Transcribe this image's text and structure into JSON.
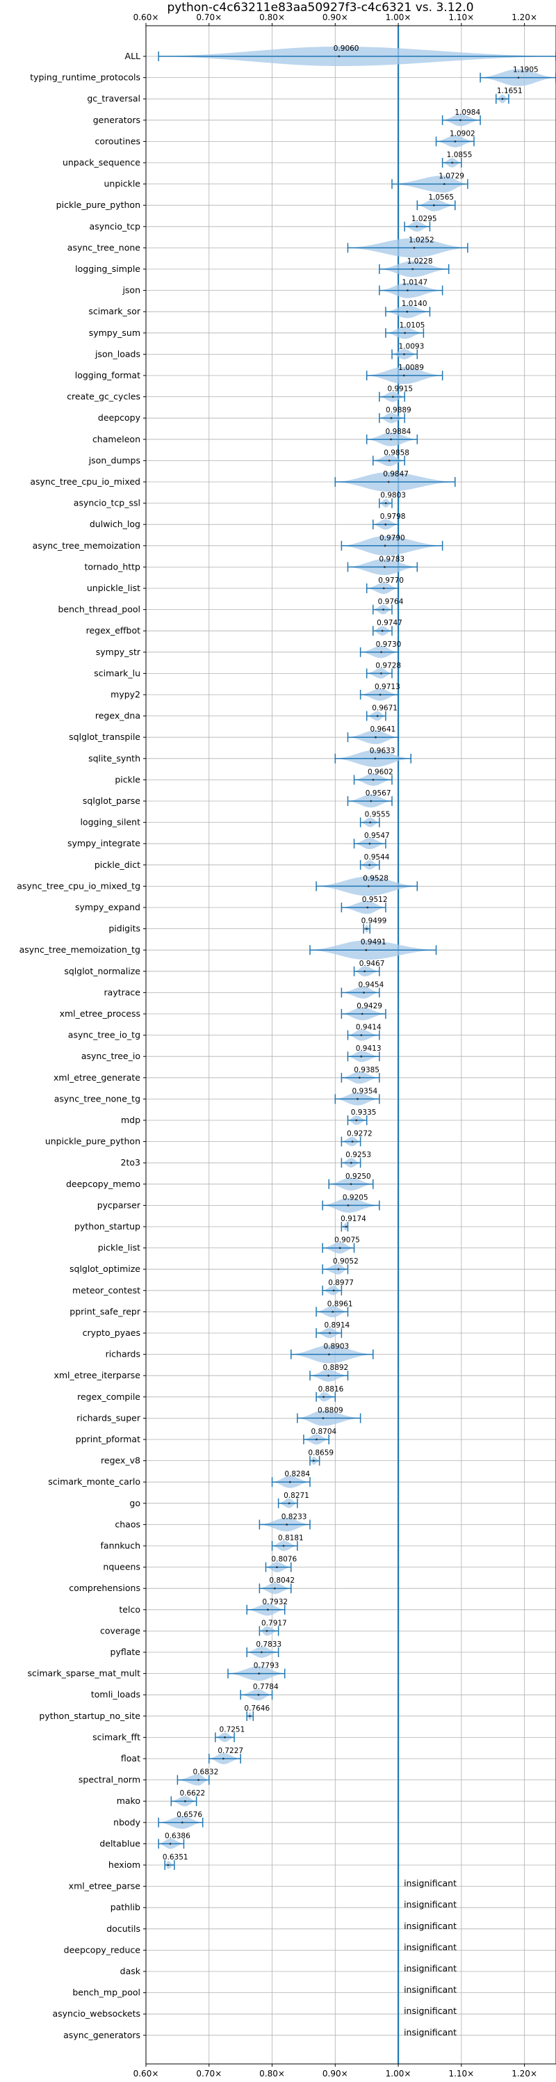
{
  "chart_data": {
    "type": "violin",
    "title": "python-c4c63211e83aa50927f3-c4c6321 vs. 3.12.0",
    "xlabel": "",
    "ylabel": "",
    "xlim": [
      0.6,
      1.25
    ],
    "x_ticks": [
      0.6,
      0.7,
      0.8,
      0.9,
      1.0,
      1.1,
      1.2
    ],
    "x_tick_labels": [
      "0.60×",
      "0.70×",
      "0.80×",
      "0.90×",
      "1.00×",
      "1.10×",
      "1.20×"
    ],
    "reference_line": 1.0,
    "grid": true,
    "colors": {
      "violin": "#a6c8e8",
      "line": "#1f77b4",
      "grid": "#b0b0b0",
      "text": "#000000"
    },
    "benchmarks": [
      {
        "name": "ALL",
        "value": 0.906,
        "label": "0.9060",
        "min": 0.62,
        "max": 1.25
      },
      {
        "name": "typing_runtime_protocols",
        "value": 1.1905,
        "label": "1.1905",
        "min": 1.13,
        "max": 1.25
      },
      {
        "name": "gc_traversal",
        "value": 1.1651,
        "label": "1.1651",
        "min": 1.155,
        "max": 1.175
      },
      {
        "name": "generators",
        "value": 1.0984,
        "label": "1.0984",
        "min": 1.07,
        "max": 1.13
      },
      {
        "name": "coroutines",
        "value": 1.0902,
        "label": "1.0902",
        "min": 1.06,
        "max": 1.12
      },
      {
        "name": "unpack_sequence",
        "value": 1.0855,
        "label": "1.0855",
        "min": 1.07,
        "max": 1.1
      },
      {
        "name": "unpickle",
        "value": 1.0729,
        "label": "1.0729",
        "min": 0.99,
        "max": 1.11
      },
      {
        "name": "pickle_pure_python",
        "value": 1.0565,
        "label": "1.0565",
        "min": 1.03,
        "max": 1.09
      },
      {
        "name": "asyncio_tcp",
        "value": 1.0295,
        "label": "1.0295",
        "min": 1.01,
        "max": 1.05
      },
      {
        "name": "async_tree_none",
        "value": 1.0252,
        "label": "1.0252",
        "min": 0.92,
        "max": 1.11
      },
      {
        "name": "logging_simple",
        "value": 1.0228,
        "label": "1.0228",
        "min": 0.97,
        "max": 1.08
      },
      {
        "name": "json",
        "value": 1.0147,
        "label": "1.0147",
        "min": 0.97,
        "max": 1.07
      },
      {
        "name": "scimark_sor",
        "value": 1.014,
        "label": "1.0140",
        "min": 0.98,
        "max": 1.05
      },
      {
        "name": "sympy_sum",
        "value": 1.0105,
        "label": "1.0105",
        "min": 0.98,
        "max": 1.04
      },
      {
        "name": "json_loads",
        "value": 1.0093,
        "label": "1.0093",
        "min": 0.99,
        "max": 1.03
      },
      {
        "name": "logging_format",
        "value": 1.0089,
        "label": "1.0089",
        "min": 0.95,
        "max": 1.07
      },
      {
        "name": "create_gc_cycles",
        "value": 0.9915,
        "label": "0.9915",
        "min": 0.97,
        "max": 1.01
      },
      {
        "name": "deepcopy",
        "value": 0.9889,
        "label": "0.9889",
        "min": 0.97,
        "max": 1.01
      },
      {
        "name": "chameleon",
        "value": 0.9884,
        "label": "0.9884",
        "min": 0.95,
        "max": 1.03
      },
      {
        "name": "json_dumps",
        "value": 0.9858,
        "label": "0.9858",
        "min": 0.96,
        "max": 1.01
      },
      {
        "name": "async_tree_cpu_io_mixed",
        "value": 0.9847,
        "label": "0.9847",
        "min": 0.9,
        "max": 1.09
      },
      {
        "name": "asyncio_tcp_ssl",
        "value": 0.9803,
        "label": "0.9803",
        "min": 0.97,
        "max": 0.99
      },
      {
        "name": "dulwich_log",
        "value": 0.9798,
        "label": "0.9798",
        "min": 0.96,
        "max": 1.0
      },
      {
        "name": "async_tree_memoization",
        "value": 0.979,
        "label": "0.9790",
        "min": 0.91,
        "max": 1.07
      },
      {
        "name": "tornado_http",
        "value": 0.9783,
        "label": "0.9783",
        "min": 0.92,
        "max": 1.03
      },
      {
        "name": "unpickle_list",
        "value": 0.977,
        "label": "0.9770",
        "min": 0.95,
        "max": 1.0
      },
      {
        "name": "bench_thread_pool",
        "value": 0.9764,
        "label": "0.9764",
        "min": 0.96,
        "max": 0.99
      },
      {
        "name": "regex_effbot",
        "value": 0.9747,
        "label": "0.9747",
        "min": 0.96,
        "max": 0.99
      },
      {
        "name": "sympy_str",
        "value": 0.973,
        "label": "0.9730",
        "min": 0.94,
        "max": 1.0
      },
      {
        "name": "scimark_lu",
        "value": 0.9728,
        "label": "0.9728",
        "min": 0.95,
        "max": 0.99
      },
      {
        "name": "mypy2",
        "value": 0.9713,
        "label": "0.9713",
        "min": 0.94,
        "max": 1.0
      },
      {
        "name": "regex_dna",
        "value": 0.9671,
        "label": "0.9671",
        "min": 0.95,
        "max": 0.98
      },
      {
        "name": "sqlglot_transpile",
        "value": 0.9641,
        "label": "0.9641",
        "min": 0.92,
        "max": 1.0
      },
      {
        "name": "sqlite_synth",
        "value": 0.9633,
        "label": "0.9633",
        "min": 0.9,
        "max": 1.02
      },
      {
        "name": "pickle",
        "value": 0.9602,
        "label": "0.9602",
        "min": 0.93,
        "max": 0.99
      },
      {
        "name": "sqlglot_parse",
        "value": 0.9567,
        "label": "0.9567",
        "min": 0.92,
        "max": 0.99
      },
      {
        "name": "logging_silent",
        "value": 0.9555,
        "label": "0.9555",
        "min": 0.94,
        "max": 0.97
      },
      {
        "name": "sympy_integrate",
        "value": 0.9547,
        "label": "0.9547",
        "min": 0.93,
        "max": 0.98
      },
      {
        "name": "pickle_dict",
        "value": 0.9544,
        "label": "0.9544",
        "min": 0.94,
        "max": 0.97
      },
      {
        "name": "async_tree_cpu_io_mixed_tg",
        "value": 0.9528,
        "label": "0.9528",
        "min": 0.87,
        "max": 1.03
      },
      {
        "name": "sympy_expand",
        "value": 0.9512,
        "label": "0.9512",
        "min": 0.91,
        "max": 0.98
      },
      {
        "name": "pidigits",
        "value": 0.9499,
        "label": "0.9499",
        "min": 0.945,
        "max": 0.955
      },
      {
        "name": "async_tree_memoization_tg",
        "value": 0.9491,
        "label": "0.9491",
        "min": 0.86,
        "max": 1.06
      },
      {
        "name": "sqlglot_normalize",
        "value": 0.9467,
        "label": "0.9467",
        "min": 0.93,
        "max": 0.97
      },
      {
        "name": "raytrace",
        "value": 0.9454,
        "label": "0.9454",
        "min": 0.91,
        "max": 0.97
      },
      {
        "name": "xml_etree_process",
        "value": 0.9429,
        "label": "0.9429",
        "min": 0.91,
        "max": 0.98
      },
      {
        "name": "async_tree_io_tg",
        "value": 0.9414,
        "label": "0.9414",
        "min": 0.92,
        "max": 0.97
      },
      {
        "name": "async_tree_io",
        "value": 0.9413,
        "label": "0.9413",
        "min": 0.92,
        "max": 0.97
      },
      {
        "name": "xml_etree_generate",
        "value": 0.9385,
        "label": "0.9385",
        "min": 0.91,
        "max": 0.97
      },
      {
        "name": "async_tree_none_tg",
        "value": 0.9354,
        "label": "0.9354",
        "min": 0.9,
        "max": 0.97
      },
      {
        "name": "mdp",
        "value": 0.9335,
        "label": "0.9335",
        "min": 0.92,
        "max": 0.95
      },
      {
        "name": "unpickle_pure_python",
        "value": 0.9272,
        "label": "0.9272",
        "min": 0.91,
        "max": 0.94
      },
      {
        "name": "2to3",
        "value": 0.9253,
        "label": "0.9253",
        "min": 0.91,
        "max": 0.94
      },
      {
        "name": "deepcopy_memo",
        "value": 0.925,
        "label": "0.9250",
        "min": 0.89,
        "max": 0.96
      },
      {
        "name": "pycparser",
        "value": 0.9205,
        "label": "0.9205",
        "min": 0.88,
        "max": 0.97
      },
      {
        "name": "python_startup",
        "value": 0.9174,
        "label": "0.9174",
        "min": 0.91,
        "max": 0.92
      },
      {
        "name": "pickle_list",
        "value": 0.9075,
        "label": "0.9075",
        "min": 0.88,
        "max": 0.93
      },
      {
        "name": "sqlglot_optimize",
        "value": 0.9052,
        "label": "0.9052",
        "min": 0.88,
        "max": 0.92
      },
      {
        "name": "meteor_contest",
        "value": 0.8977,
        "label": "0.8977",
        "min": 0.88,
        "max": 0.91
      },
      {
        "name": "pprint_safe_repr",
        "value": 0.8961,
        "label": "0.8961",
        "min": 0.87,
        "max": 0.92
      },
      {
        "name": "crypto_pyaes",
        "value": 0.8914,
        "label": "0.8914",
        "min": 0.87,
        "max": 0.91
      },
      {
        "name": "richards",
        "value": 0.8903,
        "label": "0.8903",
        "min": 0.83,
        "max": 0.96
      },
      {
        "name": "xml_etree_iterparse",
        "value": 0.8892,
        "label": "0.8892",
        "min": 0.86,
        "max": 0.92
      },
      {
        "name": "regex_compile",
        "value": 0.8816,
        "label": "0.8816",
        "min": 0.87,
        "max": 0.9
      },
      {
        "name": "richards_super",
        "value": 0.8809,
        "label": "0.8809",
        "min": 0.84,
        "max": 0.94
      },
      {
        "name": "pprint_pformat",
        "value": 0.8704,
        "label": "0.8704",
        "min": 0.85,
        "max": 0.89
      },
      {
        "name": "regex_v8",
        "value": 0.8659,
        "label": "0.8659",
        "min": 0.86,
        "max": 0.875
      },
      {
        "name": "scimark_monte_carlo",
        "value": 0.8284,
        "label": "0.8284",
        "min": 0.8,
        "max": 0.86
      },
      {
        "name": "go",
        "value": 0.8271,
        "label": "0.8271",
        "min": 0.81,
        "max": 0.84
      },
      {
        "name": "chaos",
        "value": 0.8233,
        "label": "0.8233",
        "min": 0.78,
        "max": 0.86
      },
      {
        "name": "fannkuch",
        "value": 0.8181,
        "label": "0.8181",
        "min": 0.8,
        "max": 0.84
      },
      {
        "name": "nqueens",
        "value": 0.8076,
        "label": "0.8076",
        "min": 0.79,
        "max": 0.83
      },
      {
        "name": "comprehensions",
        "value": 0.8042,
        "label": "0.8042",
        "min": 0.78,
        "max": 0.83
      },
      {
        "name": "telco",
        "value": 0.7932,
        "label": "0.7932",
        "min": 0.76,
        "max": 0.82
      },
      {
        "name": "coverage",
        "value": 0.7917,
        "label": "0.7917",
        "min": 0.78,
        "max": 0.81
      },
      {
        "name": "pyflate",
        "value": 0.7833,
        "label": "0.7833",
        "min": 0.76,
        "max": 0.81
      },
      {
        "name": "scimark_sparse_mat_mult",
        "value": 0.7793,
        "label": "0.7793",
        "min": 0.73,
        "max": 0.82
      },
      {
        "name": "tomli_loads",
        "value": 0.7784,
        "label": "0.7784",
        "min": 0.75,
        "max": 0.8
      },
      {
        "name": "python_startup_no_site",
        "value": 0.7646,
        "label": "0.7646",
        "min": 0.76,
        "max": 0.77
      },
      {
        "name": "scimark_fft",
        "value": 0.7251,
        "label": "0.7251",
        "min": 0.71,
        "max": 0.74
      },
      {
        "name": "float",
        "value": 0.7227,
        "label": "0.7227",
        "min": 0.7,
        "max": 0.75
      },
      {
        "name": "spectral_norm",
        "value": 0.6832,
        "label": "0.6832",
        "min": 0.65,
        "max": 0.7
      },
      {
        "name": "mako",
        "value": 0.6622,
        "label": "0.6622",
        "min": 0.64,
        "max": 0.68
      },
      {
        "name": "nbody",
        "value": 0.6576,
        "label": "0.6576",
        "min": 0.62,
        "max": 0.69
      },
      {
        "name": "deltablue",
        "value": 0.6386,
        "label": "0.6386",
        "min": 0.62,
        "max": 0.66
      },
      {
        "name": "hexiom",
        "value": 0.6351,
        "label": "0.6351",
        "min": 0.63,
        "max": 0.645
      },
      {
        "name": "xml_etree_parse",
        "value": null,
        "label": "insignificant"
      },
      {
        "name": "pathlib",
        "value": null,
        "label": "insignificant"
      },
      {
        "name": "docutils",
        "value": null,
        "label": "insignificant"
      },
      {
        "name": "deepcopy_reduce",
        "value": null,
        "label": "insignificant"
      },
      {
        "name": "dask",
        "value": null,
        "label": "insignificant"
      },
      {
        "name": "bench_mp_pool",
        "value": null,
        "label": "insignificant"
      },
      {
        "name": "asyncio_websockets",
        "value": null,
        "label": "insignificant"
      },
      {
        "name": "async_generators",
        "value": null,
        "label": "insignificant"
      }
    ]
  }
}
